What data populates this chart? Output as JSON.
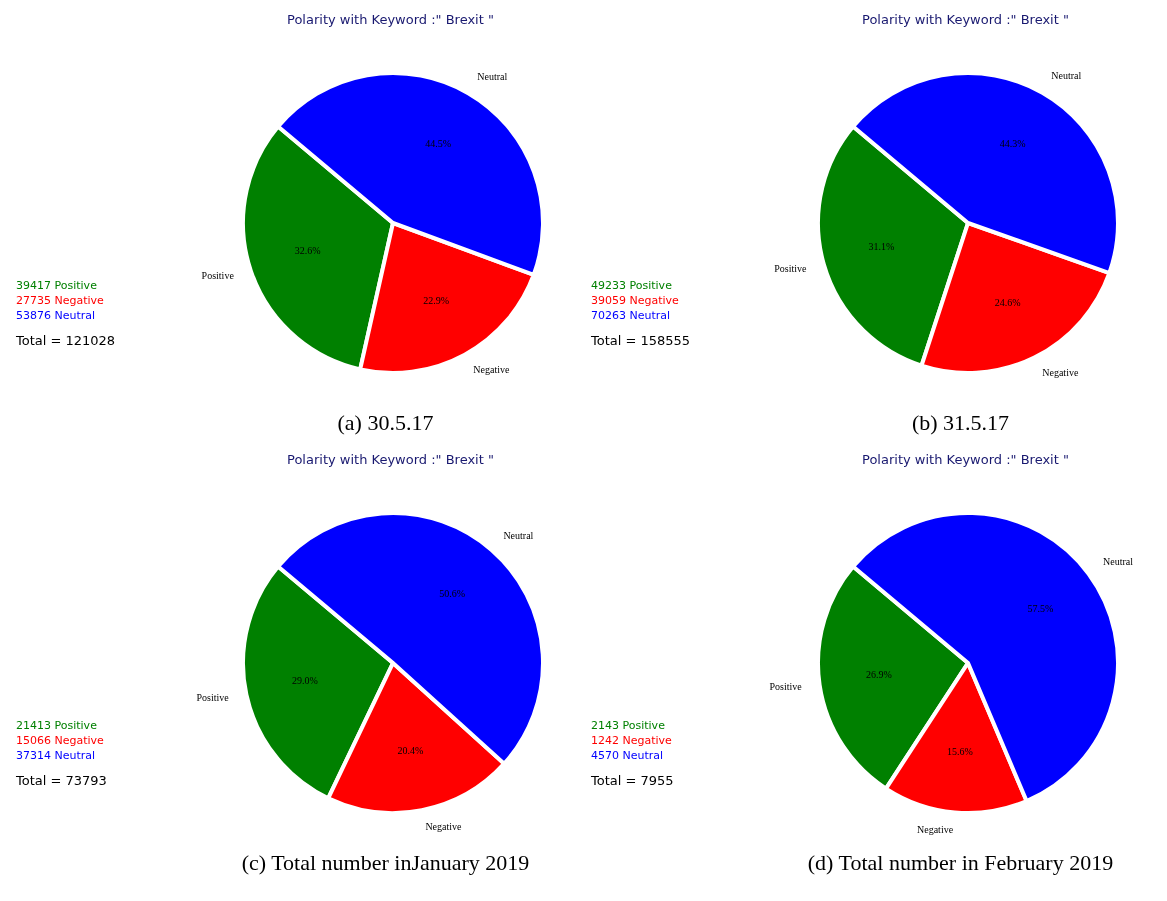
{
  "chart_data": [
    {
      "type": "pie",
      "title": "Polarity with Keyword :\" Brexit \"",
      "categories": [
        "Positive",
        "Negative",
        "Neutral"
      ],
      "values": [
        32.6,
        22.9,
        44.5
      ],
      "colors": [
        "#008000",
        "#ff0000",
        "#0000ff"
      ],
      "value_labels": [
        "32.6%",
        "22.9%",
        "44.5%"
      ],
      "annotations": [
        "39417 Positive",
        "27735 Negative",
        "53876 Neutral",
        "Total = 121028",
        "(a)  30.5.17"
      ]
    },
    {
      "type": "pie",
      "title": "Polarity with Keyword :\" Brexit \"",
      "categories": [
        "Positive",
        "Negative",
        "Neutral"
      ],
      "values": [
        31.1,
        24.6,
        44.3
      ],
      "colors": [
        "#008000",
        "#ff0000",
        "#0000ff"
      ],
      "value_labels": [
        "31.1%",
        "24.6%",
        "44.3%"
      ],
      "annotations": [
        "49233 Positive",
        "39059 Negative",
        "70263 Neutral",
        "Total = 158555",
        "(b) 31.5.17"
      ]
    },
    {
      "type": "pie",
      "title": "Polarity with Keyword :\" Brexit \"",
      "categories": [
        "Positive",
        "Negative",
        "Neutral"
      ],
      "values": [
        29.0,
        20.4,
        50.6
      ],
      "colors": [
        "#008000",
        "#ff0000",
        "#0000ff"
      ],
      "value_labels": [
        "29.0%",
        "20.4%",
        "50.6%"
      ],
      "annotations": [
        "21413 Positive",
        "15066 Negative",
        "37314 Neutral",
        "Total = 73793",
        "(c) Total number inJanuary 2019"
      ]
    },
    {
      "type": "pie",
      "title": "Polarity with Keyword :\" Brexit \"",
      "categories": [
        "Positive",
        "Negative",
        "Neutral"
      ],
      "values": [
        26.9,
        15.6,
        57.5
      ],
      "colors": [
        "#008000",
        "#ff0000",
        "#0000ff"
      ],
      "value_labels": [
        "26.9%",
        "15.6%",
        "57.5%"
      ],
      "annotations": [
        "2143 Positive",
        "1242 Negative",
        "4570 Neutral",
        "Total = 7955",
        "(d) Total number in February 2019"
      ]
    }
  ]
}
